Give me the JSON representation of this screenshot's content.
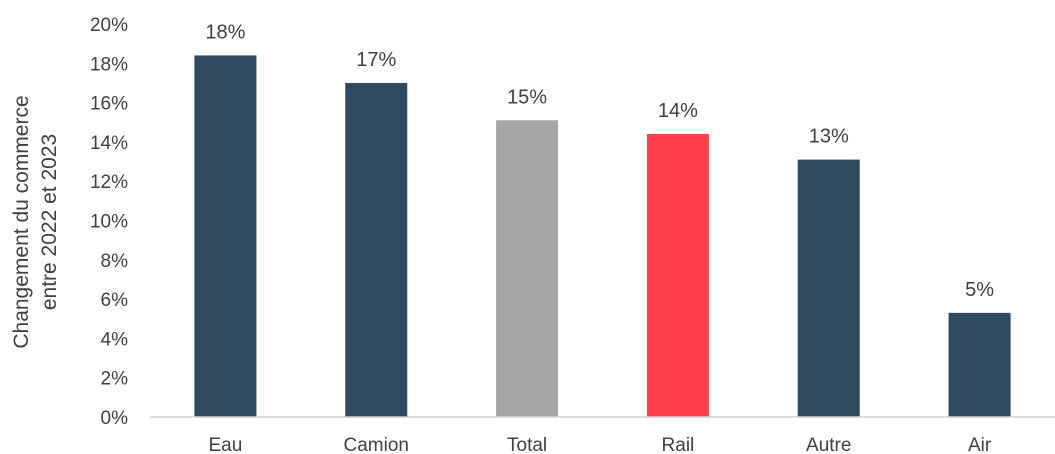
{
  "chart_data": {
    "type": "bar",
    "categories": [
      "Eau",
      "Camion",
      "Total",
      "Rail",
      "Autre",
      "Air"
    ],
    "values": [
      18.4,
      17.0,
      15.1,
      14.4,
      13.1,
      5.3
    ],
    "data_labels": [
      "18%",
      "17%",
      "15%",
      "14%",
      "13%",
      "5%"
    ],
    "colors": [
      "#2c4a60",
      "#2c4a60",
      "#a6a6a6",
      "#ff3f4a",
      "#2c4a60",
      "#2c4a60"
    ],
    "ylabel_line1": "Changement du commerce",
    "ylabel_line2": "entre 2022 et 2023",
    "ylim": [
      0,
      20
    ],
    "yticks": [
      0,
      2,
      4,
      6,
      8,
      10,
      12,
      14,
      16,
      18,
      20
    ],
    "ytick_labels": [
      "0%",
      "2%",
      "4%",
      "6%",
      "8%",
      "10%",
      "12%",
      "14%",
      "16%",
      "18%",
      "20%"
    ],
    "grid": false,
    "legend": "none"
  }
}
